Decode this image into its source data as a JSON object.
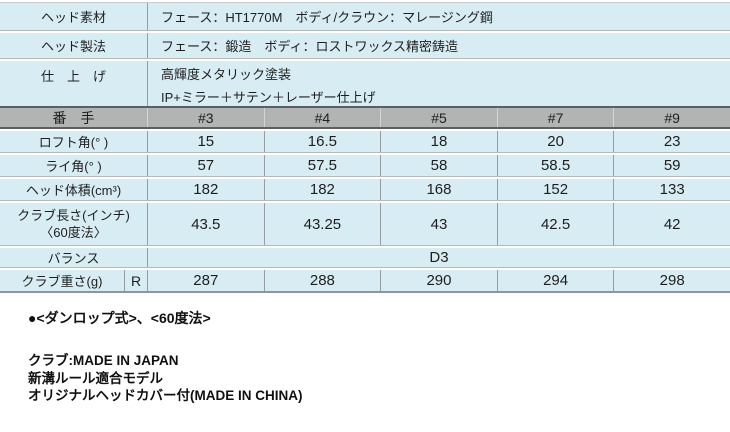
{
  "colors": {
    "row_blue": "#d8edf3",
    "header_gray": "#b2b4b4",
    "divider_gray": "#949da0",
    "dark_line": "#5a6062"
  },
  "spec": {
    "material": {
      "label": "ヘッド素材",
      "value": "フェース：HT1770M　ボディ/クラウン：マレージング鋼"
    },
    "method": {
      "label": "ヘッド製法",
      "value": "フェース：鍛造　ボディ：ロストワックス精密鋳造"
    },
    "finish": {
      "label": "仕　上　げ",
      "line1": "高輝度メタリック塗装",
      "line2": "IP+ミラー＋サテン＋レーザー仕上げ"
    }
  },
  "header": {
    "label": "番　手",
    "cols": [
      "#3",
      "#4",
      "#5",
      "#7",
      "#9"
    ]
  },
  "rows": {
    "loft": {
      "label": "ロフト角(° )",
      "values": [
        "15",
        "16.5",
        "18",
        "20",
        "23"
      ]
    },
    "lie": {
      "label": "ライ角(° )",
      "values": [
        "57",
        "57.5",
        "58",
        "58.5",
        "59"
      ]
    },
    "volume": {
      "label": "ヘッド体積(cm³)",
      "values": [
        "182",
        "182",
        "168",
        "152",
        "133"
      ]
    },
    "length": {
      "label1": "クラブ長さ(インチ)",
      "label2": "〈60度法〉",
      "values": [
        "43.5",
        "43.25",
        "43",
        "42.5",
        "42"
      ]
    },
    "balance": {
      "label": "バランス",
      "value": "D3"
    },
    "weight": {
      "label": "クラブ重さ(g)",
      "flex": "R",
      "values": [
        "287",
        "288",
        "290",
        "294",
        "298"
      ]
    }
  },
  "notes": {
    "measure": "●<ダンロップ式>、<60度法>",
    "made_in": "クラブ:MADE IN JAPAN",
    "rule": "新溝ルール適合モデル",
    "headcover": "オリジナルヘッドカバー付(MADE IN CHINA)"
  }
}
